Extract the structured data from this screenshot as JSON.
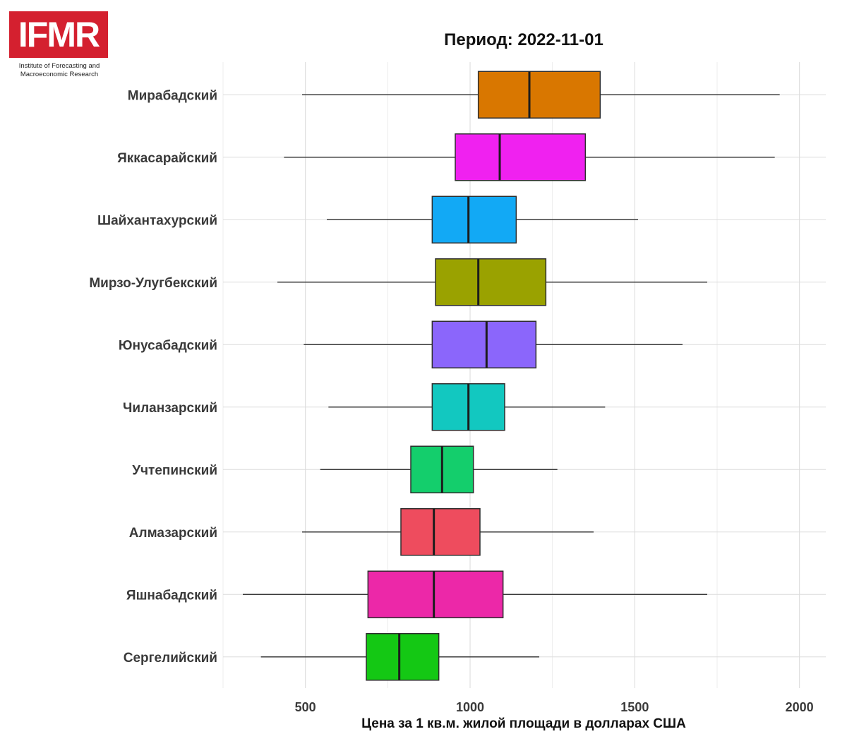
{
  "logo": {
    "text": "IFMR",
    "caption_line1": "Institute of Forecasting and",
    "caption_line2": "Macroeconomic Research",
    "color": "#d4202f"
  },
  "chart_data": {
    "type": "boxplot",
    "title": "Период: 2022-11-01",
    "xlabel": "Цена за 1 кв.м. жилой площади в долларах США",
    "ylabel": "",
    "xlim": [
      250,
      2080
    ],
    "x_ticks": [
      500,
      1000,
      1500,
      2000
    ],
    "grid": true,
    "legend": "none",
    "series": [
      {
        "category": "Мирабадский",
        "min": 490,
        "q1": 1025,
        "median": 1180,
        "q3": 1395,
        "max": 1940,
        "color": "#d97700"
      },
      {
        "category": "Яккасарайский",
        "min": 435,
        "q1": 955,
        "median": 1090,
        "q3": 1350,
        "max": 1925,
        "color": "#f021f0"
      },
      {
        "category": "Шайхантахурский",
        "min": 565,
        "q1": 885,
        "median": 995,
        "q3": 1140,
        "max": 1510,
        "color": "#12a9f5"
      },
      {
        "category": "Мирзо-Улугбекский",
        "min": 415,
        "q1": 895,
        "median": 1025,
        "q3": 1230,
        "max": 1720,
        "color": "#9aa200"
      },
      {
        "category": "Юнусабадский",
        "min": 495,
        "q1": 885,
        "median": 1050,
        "q3": 1200,
        "max": 1645,
        "color": "#8b66fb"
      },
      {
        "category": "Чиланзарский",
        "min": 570,
        "q1": 885,
        "median": 995,
        "q3": 1105,
        "max": 1410,
        "color": "#12c8c0"
      },
      {
        "category": "Учтепинский",
        "min": 545,
        "q1": 820,
        "median": 915,
        "q3": 1010,
        "max": 1265,
        "color": "#14ce6c"
      },
      {
        "category": "Алмазарский",
        "min": 490,
        "q1": 790,
        "median": 890,
        "q3": 1030,
        "max": 1375,
        "color": "#ee4c5e"
      },
      {
        "category": "Яшнабадский",
        "min": 310,
        "q1": 690,
        "median": 890,
        "q3": 1100,
        "max": 1720,
        "color": "#ec28a8"
      },
      {
        "category": "Сергелийский",
        "min": 365,
        "q1": 685,
        "median": 785,
        "q3": 905,
        "max": 1210,
        "color": "#14c814"
      }
    ]
  }
}
